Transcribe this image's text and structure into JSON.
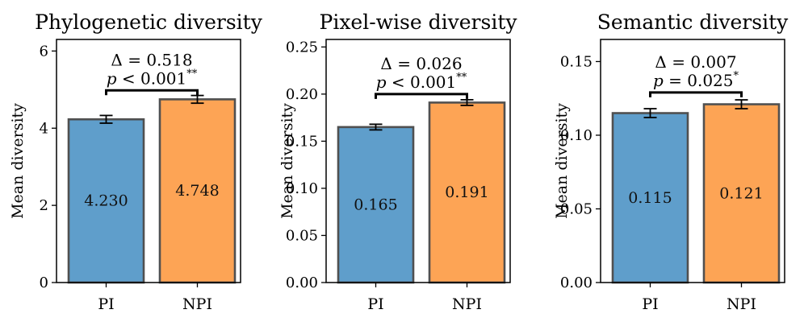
{
  "chart_data": [
    {
      "type": "bar",
      "title": "Phylogenetic diversity",
      "ylabel": "Mean diversity",
      "categories": [
        "PI",
        "NPI"
      ],
      "values": [
        4.23,
        4.748
      ],
      "value_labels": [
        "4.230",
        "4.748"
      ],
      "errors": [
        0.1,
        0.1
      ],
      "ylim": [
        0,
        6.3
      ],
      "yticks": [
        0,
        2,
        4,
        6
      ],
      "ytick_labels": [
        "0",
        "2",
        "4",
        "6"
      ],
      "delta_label": "Δ = 0.518",
      "p_label": "p < 0.001",
      "stars": "**",
      "bracket_value": 4.98
    },
    {
      "type": "bar",
      "title": "Pixel-wise diversity",
      "ylabel": "Mean diversity",
      "categories": [
        "PI",
        "NPI"
      ],
      "values": [
        0.165,
        0.191
      ],
      "value_labels": [
        "0.165",
        "0.191"
      ],
      "errors": [
        0.003,
        0.003
      ],
      "ylim": [
        0,
        0.258
      ],
      "yticks": [
        0,
        0.05,
        0.1,
        0.15,
        0.2,
        0.25
      ],
      "ytick_labels": [
        "0.00",
        "0.05",
        "0.10",
        "0.15",
        "0.20",
        "0.25"
      ],
      "delta_label": "Δ = 0.026",
      "p_label": "p < 0.001",
      "stars": "**",
      "bracket_value": 0.2
    },
    {
      "type": "bar",
      "title": "Semantic diversity",
      "ylabel": "Mean diversity",
      "categories": [
        "PI",
        "NPI"
      ],
      "values": [
        0.115,
        0.121
      ],
      "value_labels": [
        "0.115",
        "0.121"
      ],
      "errors": [
        0.003,
        0.003
      ],
      "ylim": [
        0,
        0.165
      ],
      "yticks": [
        0,
        0.05,
        0.1,
        0.15
      ],
      "ytick_labels": [
        "0.00",
        "0.05",
        "0.10",
        "0.15"
      ],
      "delta_label": "Δ = 0.007",
      "p_label": "p = 0.025",
      "stars": "*",
      "bracket_value": 0.129
    }
  ],
  "colors": {
    "PI": "#5f9ecb",
    "NPI": "#fda455",
    "edge": "#505050",
    "axis": "#000000"
  }
}
